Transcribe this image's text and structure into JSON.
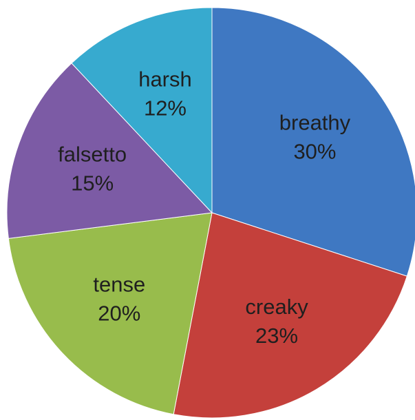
{
  "chart_data": {
    "type": "pie",
    "categories": [
      "breathy",
      "creaky",
      "tense",
      "falsetto",
      "harsh"
    ],
    "values": [
      30,
      23,
      20,
      15,
      12
    ],
    "value_labels": [
      "30%",
      "23%",
      "20%",
      "15%",
      "12%"
    ],
    "colors": [
      "#3f78c2",
      "#c4403b",
      "#98bc4c",
      "#7c5ba5",
      "#37aacf"
    ]
  }
}
